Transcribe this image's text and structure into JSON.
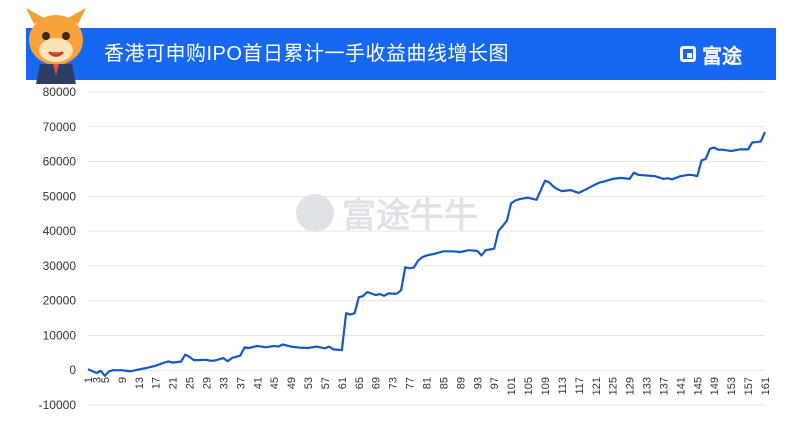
{
  "header": {
    "title": "香港可申购IPO首日累计一手收益曲线增长图",
    "brand": "富途"
  },
  "watermark": "富途牛牛",
  "colors": {
    "header_bg": "#1667f2",
    "line": "#1459c4",
    "grid": "#e6e6e6"
  },
  "chart_data": {
    "type": "line",
    "title": "香港可申购IPO首日累计一手收益曲线增长图",
    "xlabel": "",
    "ylabel": "",
    "ylim": [
      -10000,
      80000
    ],
    "yticks": [
      -10000,
      0,
      10000,
      20000,
      30000,
      40000,
      50000,
      60000,
      70000,
      80000
    ],
    "x_ticks": [
      1,
      5,
      9,
      13,
      17,
      21,
      25,
      29,
      33,
      37,
      41,
      45,
      49,
      53,
      57,
      61,
      65,
      69,
      73,
      77,
      81,
      85,
      89,
      93,
      97,
      101,
      105,
      109,
      113,
      117,
      121,
      125,
      129,
      133,
      137,
      141,
      145,
      149,
      153,
      157,
      161
    ],
    "x_ticks_extra": [
      3
    ],
    "x": [
      1,
      3,
      4,
      5,
      6,
      7,
      9,
      11,
      13,
      15,
      17,
      19,
      20,
      21,
      23,
      24,
      25,
      26,
      27,
      29,
      30,
      31,
      33,
      34,
      35,
      37,
      38,
      39,
      41,
      43,
      45,
      46,
      47,
      49,
      51,
      53,
      55,
      57,
      58,
      59,
      61,
      62,
      63,
      64,
      65,
      66,
      67,
      69,
      70,
      71,
      72,
      73,
      74,
      75,
      76,
      77,
      78,
      79,
      80,
      81,
      83,
      85,
      87,
      89,
      91,
      93,
      94,
      95,
      96,
      97,
      98,
      99,
      100,
      101,
      102,
      103,
      105,
      107,
      109,
      110,
      111,
      112,
      113,
      115,
      117,
      119,
      121,
      122,
      123,
      125,
      127,
      129,
      130,
      131,
      133,
      135,
      137,
      138,
      139,
      141,
      143,
      144,
      145,
      146,
      147,
      148,
      149,
      150,
      151,
      153,
      155,
      157,
      158,
      159,
      160,
      161
    ],
    "series": [
      {
        "values": [
          300,
          -800,
          -200,
          -1600,
          -300,
          0,
          0,
          -300,
          200,
          700,
          1300,
          2200,
          2500,
          2200,
          2500,
          4500,
          3800,
          2900,
          2900,
          3000,
          2700,
          2800,
          3500,
          2600,
          3500,
          4200,
          6600,
          6400,
          7000,
          6600,
          7000,
          6800,
          7400,
          6800,
          6500,
          6400,
          6800,
          6300,
          6800,
          6000,
          5800,
          16400,
          16000,
          16400,
          21000,
          21300,
          22500,
          21600,
          21900,
          21400,
          22100,
          22000,
          22000,
          23000,
          29600,
          29300,
          29500,
          31500,
          32500,
          33000,
          33500,
          34200,
          34200,
          34000,
          34500,
          34300,
          33000,
          34500,
          34700,
          35000,
          40000,
          41500,
          43000,
          48000,
          48800,
          49200,
          49600,
          49000,
          54500,
          54000,
          52800,
          52000,
          51500,
          51800,
          51000,
          52200,
          53500,
          54000,
          54300,
          55000,
          55300,
          55000,
          56800,
          56200,
          56000,
          55800,
          55000,
          55200,
          54900,
          55800,
          56200,
          56100,
          55800,
          60300,
          60800,
          63700,
          64000,
          63400,
          63400,
          63000,
          63500,
          63500,
          65500,
          65600,
          65800,
          68500
        ]
      }
    ]
  }
}
